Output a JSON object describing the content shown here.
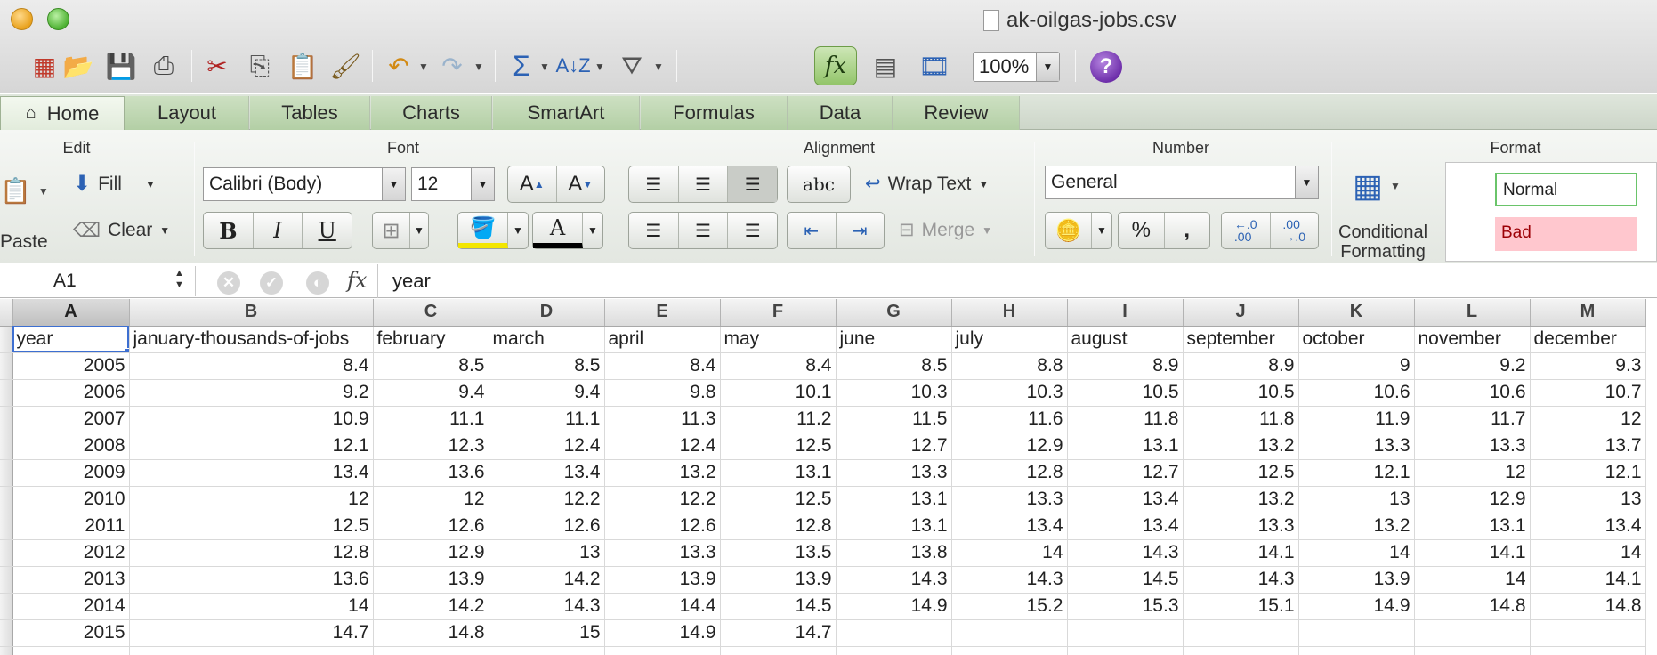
{
  "window": {
    "title": "ak-oilgas-jobs.csv"
  },
  "toolbar": {
    "zoom": "100%",
    "fx_toggle_label": "fx",
    "help_label": "?"
  },
  "ribbon_tabs": [
    {
      "label": "Home"
    },
    {
      "label": "Layout"
    },
    {
      "label": "Tables"
    },
    {
      "label": "Charts"
    },
    {
      "label": "SmartArt"
    },
    {
      "label": "Formulas"
    },
    {
      "label": "Data"
    },
    {
      "label": "Review"
    }
  ],
  "ribbon": {
    "edit": {
      "title": "Edit",
      "fill": "Fill",
      "clear": "Clear",
      "paste": "Paste"
    },
    "font": {
      "title": "Font",
      "family": "Calibri (Body)",
      "size": "12",
      "bold": "B",
      "italic": "I",
      "underline": "U",
      "grow": "A",
      "shrink": "A",
      "font_color": "A"
    },
    "alignment": {
      "title": "Alignment",
      "orientation": "abc",
      "wrap_text": "Wrap Text",
      "merge": "Merge"
    },
    "number": {
      "title": "Number",
      "format": "General",
      "percent": "%",
      "comma": ",",
      "inc_decimal": "←.0\n.00",
      "dec_decimal": ".00\n→.0"
    },
    "format": {
      "title": "Format",
      "conditional_formatting_line1": "Conditional",
      "conditional_formatting_line2": "Formatting",
      "style_normal": "Normal",
      "style_bad": "Bad"
    }
  },
  "formula_bar": {
    "name_box": "A1",
    "fx": "fx",
    "content": "year"
  },
  "sheet": {
    "columns": [
      "A",
      "B",
      "C",
      "D",
      "E",
      "F",
      "G",
      "H",
      "I",
      "J",
      "K",
      "L",
      "M"
    ],
    "header_row": [
      "year",
      "january-thousands-of-jobs",
      "february",
      "march",
      "april",
      "may",
      "june",
      "july",
      "august",
      "september",
      "october",
      "november",
      "december"
    ],
    "rows": [
      [
        "2005",
        "8.4",
        "8.5",
        "8.5",
        "8.4",
        "8.4",
        "8.5",
        "8.8",
        "8.9",
        "8.9",
        "9",
        "9.2",
        "9.3"
      ],
      [
        "2006",
        "9.2",
        "9.4",
        "9.4",
        "9.8",
        "10.1",
        "10.3",
        "10.3",
        "10.5",
        "10.5",
        "10.6",
        "10.6",
        "10.7"
      ],
      [
        "2007",
        "10.9",
        "11.1",
        "11.1",
        "11.3",
        "11.2",
        "11.5",
        "11.6",
        "11.8",
        "11.8",
        "11.9",
        "11.7",
        "12"
      ],
      [
        "2008",
        "12.1",
        "12.3",
        "12.4",
        "12.4",
        "12.5",
        "12.7",
        "12.9",
        "13.1",
        "13.2",
        "13.3",
        "13.3",
        "13.7"
      ],
      [
        "2009",
        "13.4",
        "13.6",
        "13.4",
        "13.2",
        "13.1",
        "13.3",
        "12.8",
        "12.7",
        "12.5",
        "12.1",
        "12",
        "12.1"
      ],
      [
        "2010",
        "12",
        "12",
        "12.2",
        "12.2",
        "12.5",
        "13.1",
        "13.3",
        "13.4",
        "13.2",
        "13",
        "12.9",
        "13"
      ],
      [
        "2011",
        "12.5",
        "12.6",
        "12.6",
        "12.6",
        "12.8",
        "13.1",
        "13.4",
        "13.4",
        "13.3",
        "13.2",
        "13.1",
        "13.4"
      ],
      [
        "2012",
        "12.8",
        "12.9",
        "13",
        "13.3",
        "13.5",
        "13.8",
        "14",
        "14.3",
        "14.1",
        "14",
        "14.1",
        "14"
      ],
      [
        "2013",
        "13.6",
        "13.9",
        "14.2",
        "13.9",
        "13.9",
        "14.3",
        "14.3",
        "14.5",
        "14.3",
        "13.9",
        "14",
        "14.1"
      ],
      [
        "2014",
        "14",
        "14.2",
        "14.3",
        "14.4",
        "14.5",
        "14.9",
        "15.2",
        "15.3",
        "15.1",
        "14.9",
        "14.8",
        "14.8"
      ],
      [
        "2015",
        "14.7",
        "14.8",
        "15",
        "14.9",
        "14.7",
        "",
        "",
        "",
        "",
        "",
        "",
        ""
      ]
    ]
  }
}
